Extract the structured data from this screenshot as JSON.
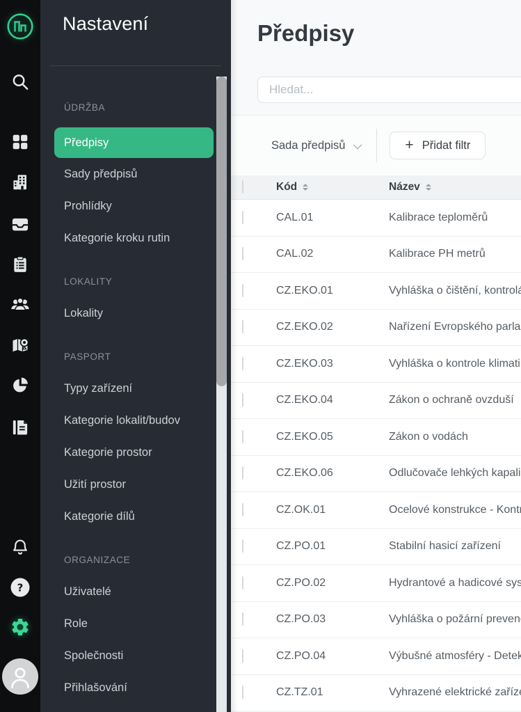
{
  "colors": {
    "accent_selected": "#36b885",
    "logo_green": "#2fcf8e",
    "settings_gear_green": "#3bd794",
    "sidebar_bg": "#272c34",
    "rail_bg": "#0c0e0f",
    "main_bg": "#f8f9fa",
    "table_header_bg": "#f0f2f4"
  },
  "rail": {
    "icons": [
      "app-logo",
      "search",
      "apps-grid",
      "buildings",
      "inbox",
      "clipboard",
      "people",
      "map-pin",
      "pie-chart",
      "documents",
      "bell",
      "help",
      "settings-gear",
      "avatar"
    ]
  },
  "sidebar": {
    "title": "Nastavení",
    "groups": [
      {
        "label": "ÚDRŽBA",
        "items": [
          {
            "label": "Předpisy",
            "selected": true
          },
          {
            "label": "Sady předpisů",
            "selected": false
          },
          {
            "label": "Prohlídky",
            "selected": false
          },
          {
            "label": "Kategorie kroku rutin",
            "selected": false
          }
        ]
      },
      {
        "label": "LOKALITY",
        "items": [
          {
            "label": "Lokality",
            "selected": false
          }
        ]
      },
      {
        "label": "PASPORT",
        "items": [
          {
            "label": "Typy zařízení",
            "selected": false
          },
          {
            "label": "Kategorie lokalit/budov",
            "selected": false
          },
          {
            "label": "Kategorie prostor",
            "selected": false
          },
          {
            "label": "Užití prostor",
            "selected": false
          },
          {
            "label": "Kategorie dílů",
            "selected": false
          }
        ]
      },
      {
        "label": "ORGANIZACE",
        "items": [
          {
            "label": "Uživatelé",
            "selected": false
          },
          {
            "label": "Role",
            "selected": false
          },
          {
            "label": "Společnosti",
            "selected": false
          },
          {
            "label": "Přihlašování",
            "selected": false
          }
        ]
      }
    ]
  },
  "main": {
    "title": "Předpisy",
    "search": {
      "placeholder": "Hledat..."
    },
    "filter_bar": {
      "set_dropdown_label": "Sada předpisů",
      "add_filter_plus": "+",
      "add_filter_label": "Přidat filtr"
    },
    "table": {
      "columns": [
        {
          "key": "code",
          "label": "Kód",
          "sortable": true
        },
        {
          "key": "name",
          "label": "Název",
          "sortable": true
        }
      ],
      "rows": [
        {
          "code": "CAL.01",
          "name": "Kalibrace teploměrů"
        },
        {
          "code": "CAL.02",
          "name": "Kalibrace PH metrů"
        },
        {
          "code": "CZ.EKO.01",
          "name": "Vyhláška o čištění, kontrolách"
        },
        {
          "code": "CZ.EKO.02",
          "name": "Nařízení Evropského parlam"
        },
        {
          "code": "CZ.EKO.03",
          "name": "Vyhláška o kontrole klimati"
        },
        {
          "code": "CZ.EKO.04",
          "name": "Zákon o ochraně ovzduší"
        },
        {
          "code": "CZ.EKO.05",
          "name": "Zákon o vodách"
        },
        {
          "code": "CZ.EKO.06",
          "name": "Odlučovače lehkých kapalin"
        },
        {
          "code": "CZ.OK.01",
          "name": "Ocelové konstrukce - Kontrola"
        },
        {
          "code": "CZ.PO.01",
          "name": "Stabilní hasicí zařízení"
        },
        {
          "code": "CZ.PO.02",
          "name": "Hydrantové a hadicové sys"
        },
        {
          "code": "CZ.PO.03",
          "name": "Vyhláška o požární prevenci"
        },
        {
          "code": "CZ.PO.04",
          "name": "Výbušné atmosféry - Detek"
        },
        {
          "code": "CZ.TZ.01",
          "name": "Vyhrazené elektrické zařízení"
        }
      ]
    }
  }
}
